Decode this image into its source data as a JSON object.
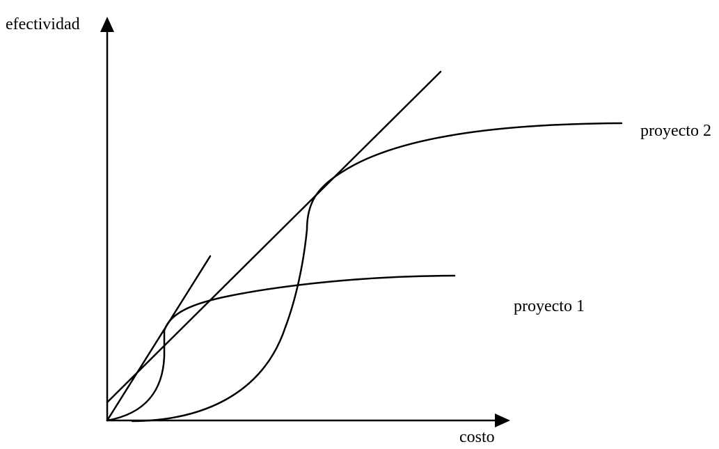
{
  "axes": {
    "y_label": "efectividad",
    "x_label": "costo"
  },
  "curves": {
    "project1_label": "proyecto 1",
    "project2_label": "proyecto 2"
  },
  "colors": {
    "stroke": "#000000",
    "background": "#ffffff"
  }
}
